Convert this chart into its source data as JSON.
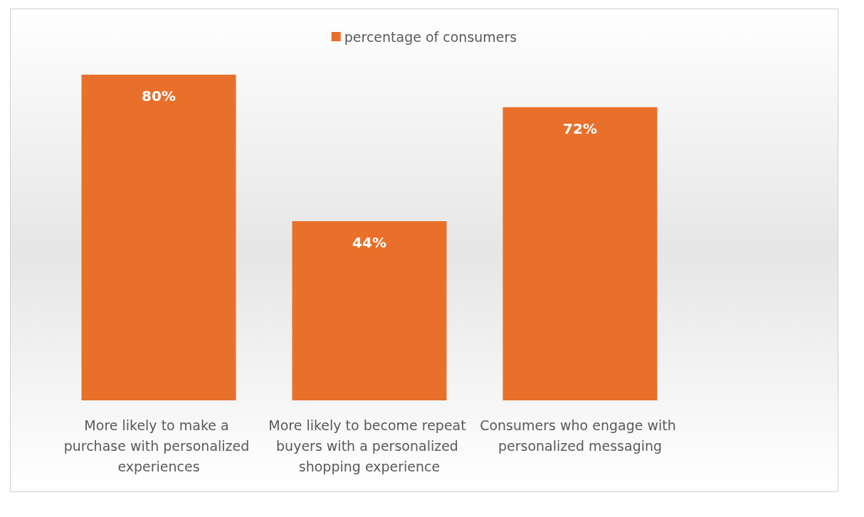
{
  "chart_data": {
    "type": "bar",
    "categories": [
      "More likely to make a purchase with personalized experiences",
      "More likely to become repeat buyers with a personalized shopping experience",
      "Consumers who engage with personalized messaging"
    ],
    "series": [
      {
        "name": "percentage of consumers",
        "color": "#e8702a",
        "values": [
          80,
          44,
          72
        ],
        "value_labels": [
          "80%",
          "44%",
          "72%"
        ]
      }
    ],
    "legend": "top",
    "grid": false,
    "tick_labels": "x"
  }
}
